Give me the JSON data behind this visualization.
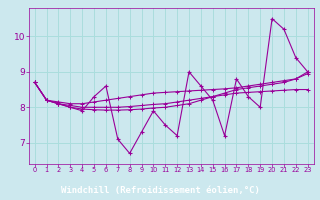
{
  "xlabel": "Windchill (Refroidissement éolien,°C)",
  "bg_color": "#cce8ee",
  "line_color": "#990099",
  "grid_color": "#aadddd",
  "xlabel_bg": "#9900aa",
  "xlabel_fg": "#ffffff",
  "xlim": [
    -0.5,
    23.5
  ],
  "ylim": [
    6.4,
    10.8
  ],
  "yticks": [
    7,
    8,
    9,
    10
  ],
  "xticks": [
    0,
    1,
    2,
    3,
    4,
    5,
    6,
    7,
    8,
    9,
    10,
    11,
    12,
    13,
    14,
    15,
    16,
    17,
    18,
    19,
    20,
    21,
    22,
    23
  ],
  "series1": [
    8.7,
    8.2,
    8.1,
    8.0,
    7.9,
    8.3,
    8.6,
    7.1,
    6.7,
    7.3,
    7.9,
    7.5,
    7.2,
    9.0,
    8.6,
    8.2,
    7.2,
    8.8,
    8.3,
    8.0,
    10.5,
    10.2,
    9.4,
    9.0
  ],
  "series2": [
    8.7,
    8.2,
    8.15,
    8.1,
    8.1,
    8.15,
    8.2,
    8.25,
    8.3,
    8.35,
    8.4,
    8.42,
    8.44,
    8.46,
    8.48,
    8.5,
    8.52,
    8.55,
    8.6,
    8.65,
    8.7,
    8.75,
    8.8,
    9.0
  ],
  "series3": [
    8.7,
    8.2,
    8.1,
    8.05,
    8.0,
    8.0,
    8.0,
    8.0,
    8.02,
    8.05,
    8.08,
    8.1,
    8.15,
    8.2,
    8.25,
    8.3,
    8.35,
    8.4,
    8.42,
    8.44,
    8.46,
    8.48,
    8.5,
    8.5
  ],
  "series4": [
    8.7,
    8.2,
    8.1,
    8.0,
    7.95,
    7.93,
    7.92,
    7.92,
    7.93,
    7.95,
    7.98,
    8.0,
    8.05,
    8.1,
    8.2,
    8.3,
    8.4,
    8.5,
    8.55,
    8.6,
    8.65,
    8.7,
    8.8,
    8.95
  ]
}
